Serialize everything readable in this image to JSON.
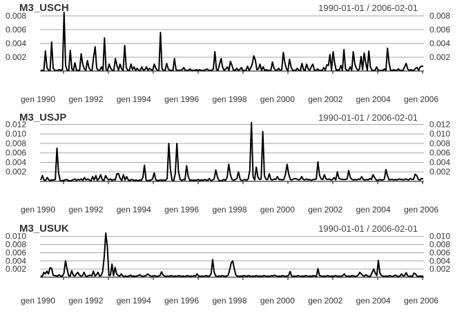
{
  "chart_data": [
    {
      "type": "line",
      "title": "M3_USCH",
      "subtitle": "1990-01-01 / 2006-02-01",
      "xlabel": "",
      "ylabel": "",
      "x_start": "1990-01",
      "x_end": "2006-02",
      "x_tick_labels": [
        "gen 1990",
        "gen 1992",
        "gen 1994",
        "gen 1996",
        "gen 1998",
        "gen 2000",
        "gen 2002",
        "gen 2004",
        "gen 2006"
      ],
      "ylim": [
        0,
        0.0085
      ],
      "y_ticks": [
        0.002,
        0.004,
        0.006,
        0.008
      ],
      "y_tick_labels": [
        "0.002",
        "0.004",
        "0.006",
        "0.008"
      ],
      "y_axis_sides": [
        "left",
        "right"
      ],
      "grid": true,
      "legend": "none",
      "series": [
        {
          "color": "#000000",
          "values": [
            0.0001,
            0.0001,
            0.0001,
            0.0029,
            0.0005,
            0.0001,
            0.0001,
            0.0042,
            0.0004,
            0.0001,
            0.0001,
            0.0001,
            0.0002,
            0.0001,
            0.0002,
            0.0085,
            0.0008,
            0.0001,
            0.0001,
            0.003,
            0.0003,
            0.0001,
            0.0012,
            0.0001,
            0.0001,
            0.0001,
            0.0025,
            0.001,
            0.0003,
            0.0001,
            0.0015,
            0.0005,
            0.0001,
            0.0001,
            0.002,
            0.0035,
            0.0004,
            0.0001,
            0.0001,
            0.0006,
            0.0001,
            0.0048,
            0.0002,
            0.0001,
            0.001,
            0.0004,
            0.0001,
            0.0001,
            0.0018,
            0.0008,
            0.0001,
            0.001,
            0.0003,
            0.0001,
            0.0037,
            0.0005,
            0.0001,
            0.0001,
            0.001,
            0.0002,
            0.0006,
            0.0001,
            0.0004,
            0.0001,
            0.0001,
            0.0006,
            0.0001,
            0.0002,
            0.0006,
            0.0001,
            0.0004,
            0.0002,
            0.0001,
            0.001,
            0.0004,
            0.0001,
            0.0001,
            0.0056,
            0.0003,
            0.0001,
            0.0001,
            0.0011,
            0.0003,
            0.0001,
            0.0001,
            0.0001,
            0.0018,
            0.0002,
            0.0001,
            0.0001,
            0.0001,
            0.0002,
            0.0005,
            0.0001,
            0.0001,
            0.0001,
            0.0003,
            0.0001,
            0.0001,
            0.0001,
            0.0002,
            0.0001,
            0.0002,
            0.0001,
            0.0001,
            0.0001,
            0.0002,
            0.0003,
            0.0001,
            0.0001,
            0.0001,
            0.0003,
            0.0028,
            0.0002,
            0.0001,
            0.001,
            0.0018,
            0.0005,
            0.0001,
            0.0003,
            0.0006,
            0.0001,
            0.0014,
            0.0008,
            0.0001,
            0.0001,
            0.0004,
            0.0001,
            0.0002,
            0.0005,
            0.0001,
            0.0001,
            0.0001,
            0.0007,
            0.0001,
            0.0004,
            0.001,
            0.0022,
            0.0016,
            0.0002,
            0.0003,
            0.001,
            0.0001,
            0.0006,
            0.0001,
            0.0002,
            0.0001,
            0.0001,
            0.0001,
            0.0013,
            0.0004,
            0.0001,
            0.0001,
            0.0004,
            0.0001,
            0.0002,
            0.0027,
            0.0012,
            0.0003,
            0.0001,
            0.0017,
            0.0006,
            0.0001,
            0.0001,
            0.0001,
            0.0004,
            0.0001,
            0.0001,
            0.0011,
            0.0002,
            0.0001,
            0.001,
            0.0003,
            0.0001,
            0.0006,
            0.001,
            0.0001,
            0.0001,
            0.0003,
            0.0001,
            0.0001,
            0.0001,
            0.0005,
            0.0001,
            0.0009,
            0.0008,
            0.0024,
            0.0001,
            0.0028,
            0.0012,
            0.0001,
            0.0002,
            0.0001,
            0.0008,
            0.0001,
            0.0031,
            0.0003,
            0.0001,
            0.0001,
            0.0006,
            0.0001,
            0.0028,
            0.001,
            0.0004,
            0.0001,
            0.0003,
            0.0021,
            0.0002,
            0.0026,
            0.0012,
            0.0001,
            0.0029,
            0.0006,
            0.0001,
            0.0001,
            0.0001,
            0.0006,
            0.0001,
            0.0001,
            0.0001,
            0.0001,
            0.0003,
            0.0001,
            0.0033,
            0.0012,
            0.0001,
            0.0001,
            0.0002,
            0.0001,
            0.0001,
            0.0003,
            0.0001,
            0.0001,
            0.0001,
            0.0006,
            0.0011,
            0.0003,
            0.0001,
            0.0002,
            0.0001,
            0.0001,
            0.0004,
            0.0005,
            0.0001,
            0.0006,
            0.0007,
            0.0007
          ]
        }
      ]
    },
    {
      "type": "line",
      "title": "M3_USJP",
      "subtitle": "1990-01-01 / 2006-02-01",
      "xlabel": "",
      "ylabel": "",
      "x_start": "1990-01",
      "x_end": "2006-02",
      "x_tick_labels": [
        "gen 1990",
        "gen 1992",
        "gen 1994",
        "gen 1996",
        "gen 1998",
        "gen 2000",
        "gen 2002",
        "gen 2004",
        "gen 2006"
      ],
      "ylim": [
        0,
        0.0125
      ],
      "y_ticks": [
        0.002,
        0.004,
        0.006,
        0.008,
        0.01,
        0.012
      ],
      "y_tick_labels": [
        "0.002",
        "0.004",
        "0.006",
        "0.008",
        "0.010",
        "0.012"
      ],
      "y_axis_sides": [
        "left",
        "right"
      ],
      "grid": true,
      "legend": "none",
      "series": [
        {
          "color": "#000000",
          "values": [
            0.0003,
            0.0012,
            0.0003,
            0.0002,
            0.0008,
            0.0003,
            0.0002,
            0.0003,
            0.0003,
            0.0004,
            0.007,
            0.0018,
            0.0002,
            0.0001,
            0.0002,
            0.0003,
            0.0004,
            0.0002,
            0.0001,
            0.0002,
            0.0003,
            0.0005,
            0.0002,
            0.0004,
            0.0003,
            0.0005,
            0.0002,
            0.0008,
            0.0003,
            0.0005,
            0.0003,
            0.0001,
            0.001,
            0.0003,
            0.0012,
            0.0002,
            0.0006,
            0.0014,
            0.0003,
            0.0002,
            0.0012,
            0.0006,
            0.0003,
            0.0005,
            0.0002,
            0.0004,
            0.0003,
            0.0016,
            0.0016,
            0.0006,
            0.0002,
            0.0014,
            0.0003,
            0.001,
            0.0003,
            0.0002,
            0.0004,
            0.0003,
            0.0002,
            0.0003,
            0.0001,
            0.0003,
            0.0002,
            0.0008,
            0.0034,
            0.0003,
            0.0001,
            0.0002,
            0.0003,
            0.0005,
            0.0018,
            0.0003,
            0.0002,
            0.0002,
            0.0003,
            0.0002,
            0.0003,
            0.0002,
            0.0006,
            0.008,
            0.0025,
            0.0003,
            0.0001,
            0.0016,
            0.008,
            0.002,
            0.0004,
            0.0002,
            0.0004,
            0.0003,
            0.0033,
            0.001,
            0.0002,
            0.0003,
            0.0002,
            0.0003,
            0.0002,
            0.0004,
            0.0002,
            0.0003,
            0.0002,
            0.0004,
            0.0003,
            0.0002,
            0.0006,
            0.0001,
            0.0003,
            0.0005,
            0.0024,
            0.0009,
            0.0002,
            0.0001,
            0.0002,
            0.0004,
            0.0002,
            0.0008,
            0.0036,
            0.0014,
            0.0004,
            0.0002,
            0.0004,
            0.0006,
            0.002,
            0.0005,
            0.0001,
            0.0003,
            0.0004,
            0.0002,
            0.0005,
            0.0024,
            0.0124,
            0.001,
            0.0003,
            0.003,
            0.0009,
            0.0004,
            0.0005,
            0.0105,
            0.0012,
            0.0004,
            0.0004,
            0.0016,
            0.0004,
            0.0003,
            0.0005,
            0.0004,
            0.001,
            0.0004,
            0.0004,
            0.0003,
            0.0004,
            0.0015,
            0.0036,
            0.0015,
            0.0004,
            0.0003,
            0.0005,
            0.0006,
            0.0005,
            0.0003,
            0.0004,
            0.001,
            0.0004,
            0.0003,
            0.0005,
            0.0003,
            0.0004,
            0.0002,
            0.0004,
            0.0004,
            0.0005,
            0.0041,
            0.0013,
            0.0005,
            0.0004,
            0.0014,
            0.0005,
            0.0004,
            0.0005,
            0.0003,
            0.0004,
            0.0008,
            0.0003,
            0.002,
            0.0006,
            0.0005,
            0.0004,
            0.0004,
            0.0004,
            0.0005,
            0.0023,
            0.0008,
            0.0004,
            0.0003,
            0.0004,
            0.0003,
            0.0005,
            0.0004,
            0.001,
            0.0004,
            0.0003,
            0.0004,
            0.0003,
            0.0006,
            0.0004,
            0.0014,
            0.0008,
            0.0003,
            0.0002,
            0.0004,
            0.0003,
            0.0003,
            0.0005,
            0.0025,
            0.0011,
            0.0003,
            0.0004,
            0.0004,
            0.0003,
            0.0004,
            0.0003,
            0.0005,
            0.0004,
            0.0004,
            0.0003,
            0.0005,
            0.0004,
            0.0003,
            0.0006,
            0.0004,
            0.0004,
            0.0015,
            0.0012,
            0.0004,
            0.0003,
            0.0006,
            0.0005
          ]
        }
      ]
    },
    {
      "type": "line",
      "title": "M3_USUK",
      "subtitle": "1990-01-01 / 2006-02-01",
      "xlabel": "",
      "ylabel": "",
      "x_start": "1990-01",
      "x_end": "2006-02",
      "x_tick_labels": [
        "gen 1990",
        "gen 1992",
        "gen 1994",
        "gen 1996",
        "gen 1998",
        "gen 2000",
        "gen 2002",
        "gen 2004",
        "gen 2006"
      ],
      "ylim": [
        0,
        0.0108
      ],
      "y_ticks": [
        0.002,
        0.004,
        0.006,
        0.008,
        0.01
      ],
      "y_tick_labels": [
        "0.002",
        "0.004",
        "0.006",
        "0.008",
        "0.010"
      ],
      "y_axis_sides": [
        "left",
        "right"
      ],
      "grid": true,
      "legend": "none",
      "series": [
        {
          "color": "#000000",
          "values": [
            0.0003,
            0.0002,
            0.0012,
            0.0008,
            0.0015,
            0.0008,
            0.0023,
            0.0022,
            0.0005,
            0.0004,
            0.0003,
            0.0003,
            0.0006,
            0.0002,
            0.0003,
            0.001,
            0.004,
            0.002,
            0.0004,
            0.0003,
            0.0016,
            0.0005,
            0.0003,
            0.0008,
            0.0012,
            0.0005,
            0.0003,
            0.0004,
            0.0012,
            0.0003,
            0.0002,
            0.0004,
            0.0005,
            0.0003,
            0.0015,
            0.0003,
            0.0006,
            0.0012,
            0.0003,
            0.0004,
            0.0014,
            0.005,
            0.0108,
            0.0075,
            0.0004,
            0.0005,
            0.0032,
            0.0004,
            0.0024,
            0.0008,
            0.0004,
            0.0003,
            0.0008,
            0.0003,
            0.0002,
            0.0003,
            0.0002,
            0.0003,
            0.0005,
            0.0002,
            0.0003,
            0.0002,
            0.0003,
            0.0004,
            0.0006,
            0.0003,
            0.0002,
            0.0003,
            0.0004,
            0.0008,
            0.0005,
            0.0003,
            0.0002,
            0.0004,
            0.0003,
            0.0002,
            0.0003,
            0.0004,
            0.0013,
            0.0005,
            0.0003,
            0.0002,
            0.0003,
            0.0002,
            0.0004,
            0.0003,
            0.0002,
            0.0003,
            0.0002,
            0.0004,
            0.0003,
            0.0002,
            0.0003,
            0.0002,
            0.0003,
            0.0004,
            0.0002,
            0.0003,
            0.0002,
            0.0004,
            0.0003,
            0.0008,
            0.0003,
            0.0002,
            0.0003,
            0.0002,
            0.0003,
            0.0004,
            0.0002,
            0.0003,
            0.0008,
            0.0043,
            0.0012,
            0.0003,
            0.0002,
            0.0003,
            0.0002,
            0.0004,
            0.0003,
            0.0002,
            0.0003,
            0.0005,
            0.0018,
            0.0035,
            0.004,
            0.002,
            0.0005,
            0.0003,
            0.0002,
            0.0003,
            0.0002,
            0.0004,
            0.0003,
            0.0002,
            0.0004,
            0.0003,
            0.0002,
            0.0003,
            0.0002,
            0.0004,
            0.0003,
            0.0002,
            0.0003,
            0.0002,
            0.0004,
            0.0003,
            0.0002,
            0.0003,
            0.0002,
            0.0004,
            0.0003,
            0.0005,
            0.0003,
            0.0002,
            0.0003,
            0.0002,
            0.0004,
            0.0003,
            0.0002,
            0.0003,
            0.0004,
            0.0014,
            0.0003,
            0.0002,
            0.0003,
            0.0002,
            0.0004,
            0.0003,
            0.0002,
            0.0003,
            0.0002,
            0.0004,
            0.0003,
            0.0002,
            0.0003,
            0.0002,
            0.0004,
            0.0003,
            0.0002,
            0.0021,
            0.0004,
            0.0003,
            0.0002,
            0.0003,
            0.0002,
            0.0004,
            0.0003,
            0.0002,
            0.0003,
            0.0002,
            0.0004,
            0.0003,
            0.0002,
            0.0003,
            0.0002,
            0.0004,
            0.0008,
            0.0003,
            0.0002,
            0.0003,
            0.0002,
            0.0004,
            0.0003,
            0.0002,
            0.0003,
            0.0005,
            0.0012,
            0.0008,
            0.0004,
            0.0003,
            0.0006,
            0.0003,
            0.0002,
            0.0003,
            0.0012,
            0.002,
            0.001,
            0.0004,
            0.0041,
            0.001,
            0.0004,
            0.0003,
            0.0002,
            0.0003,
            0.0002,
            0.0004,
            0.0003,
            0.0002,
            0.0003,
            0.0005,
            0.0003,
            0.0002,
            0.0003,
            0.0008,
            0.0003,
            0.0004,
            0.0011,
            0.0003,
            0.0002,
            0.0003,
            0.0002,
            0.001,
            0.0008,
            0.0003,
            0.0002,
            0.0003,
            0.0002,
            0.0003
          ]
        }
      ]
    }
  ]
}
